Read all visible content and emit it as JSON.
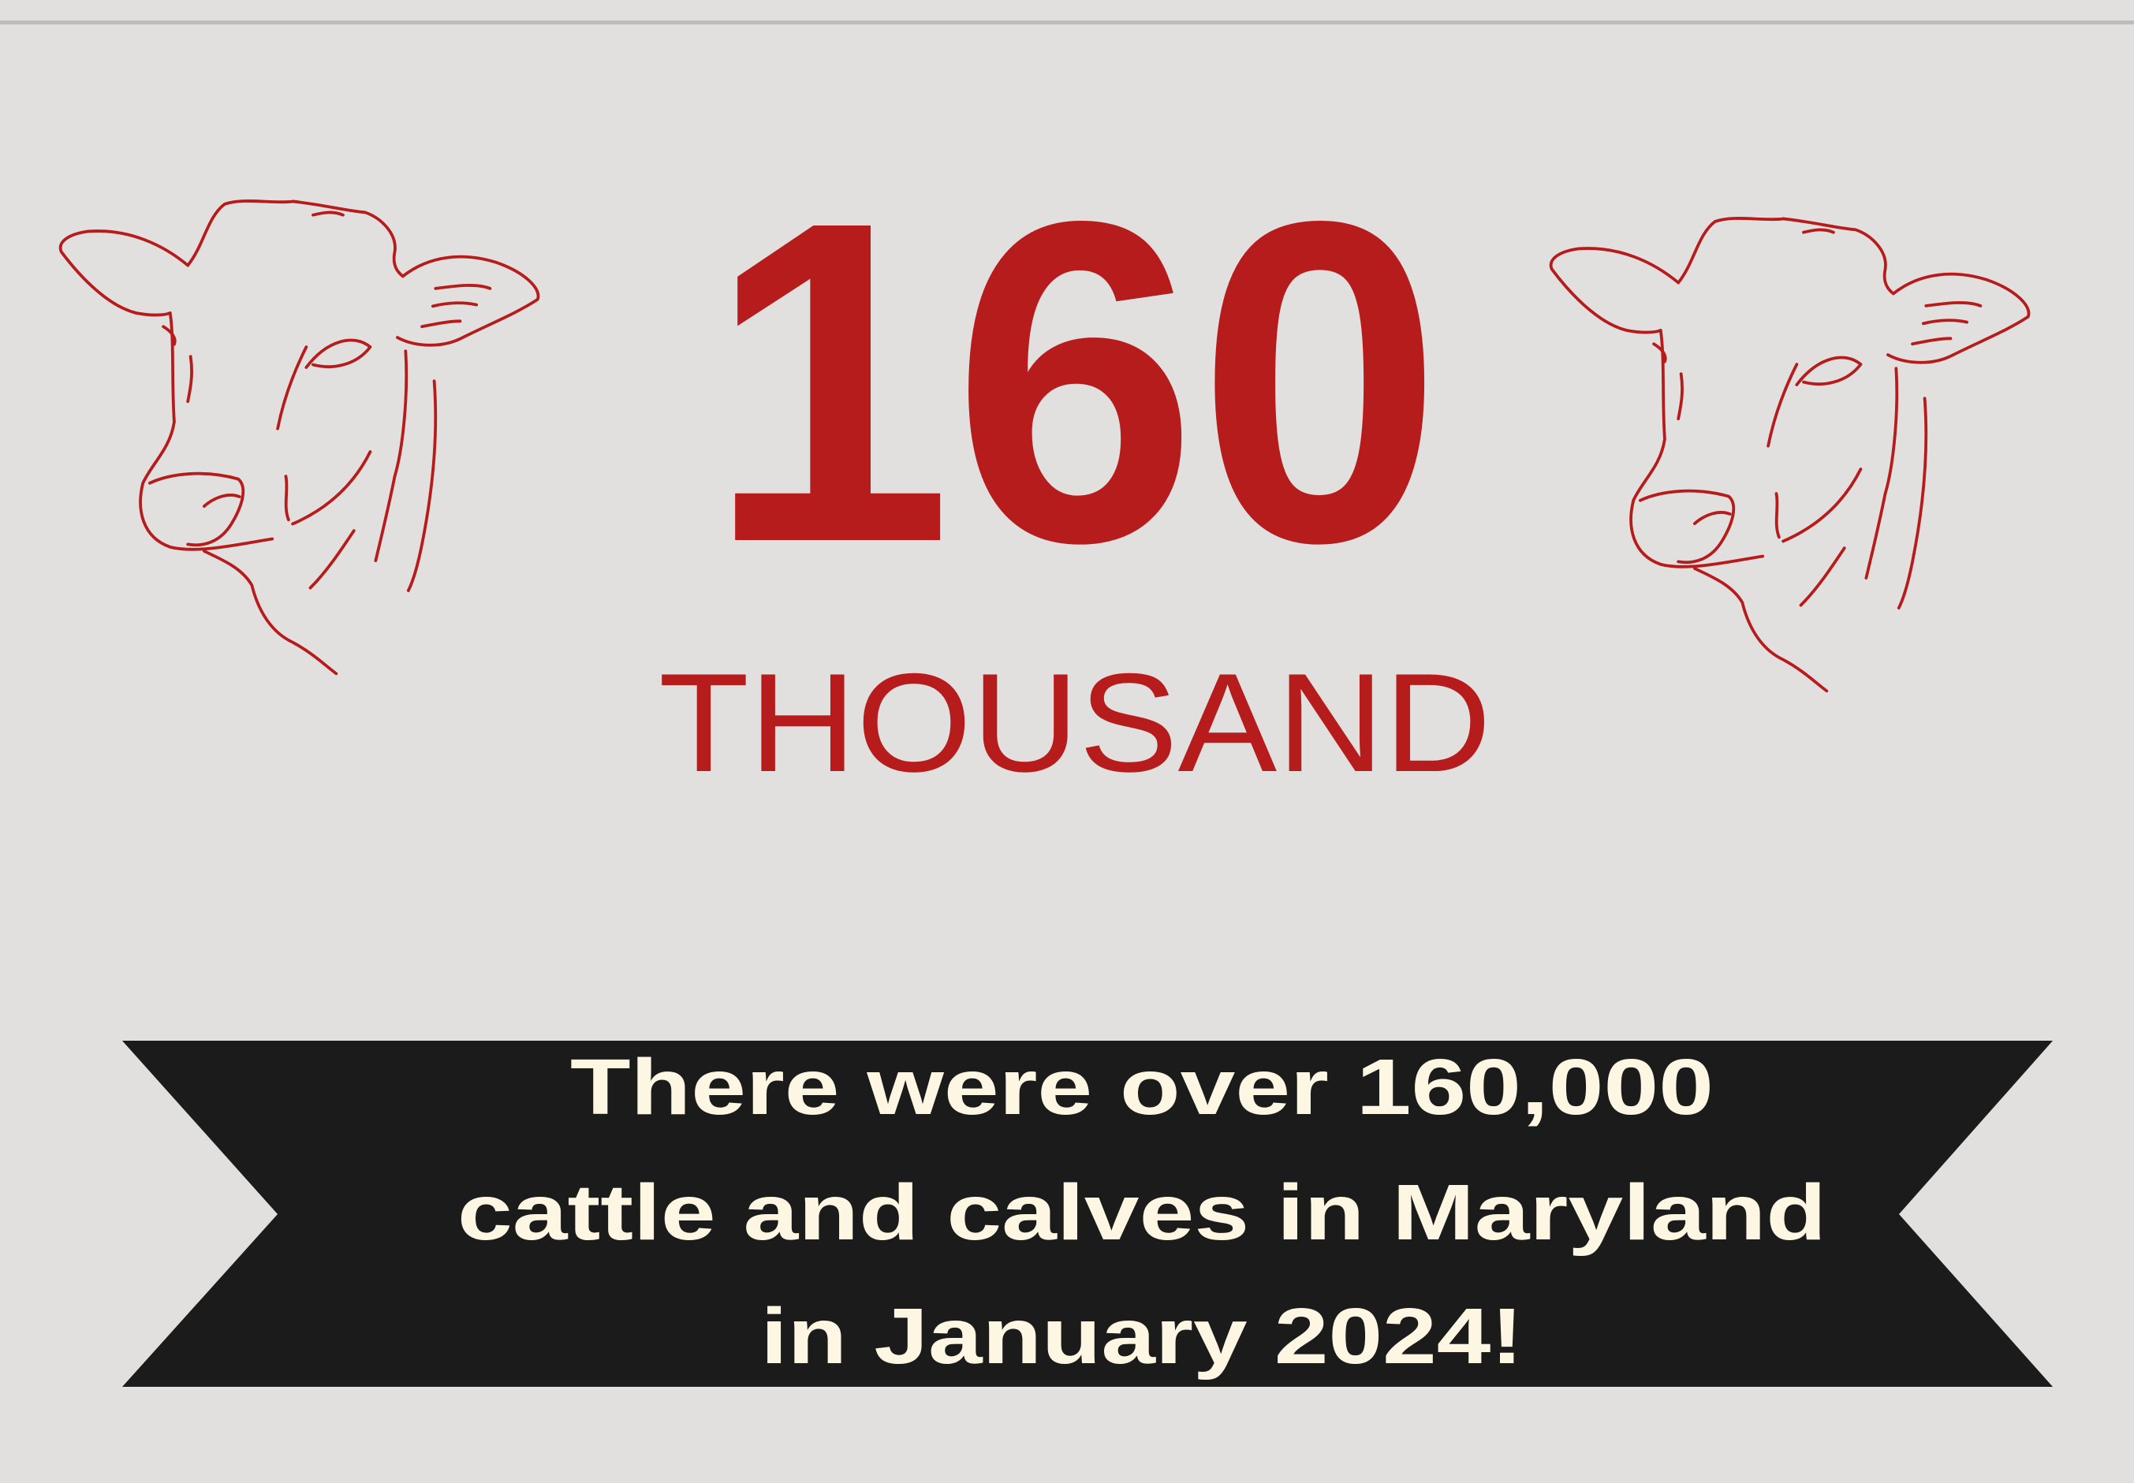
{
  "headline": {
    "number": "160",
    "unit": "THOUSAND"
  },
  "banner": {
    "lines": [
      "There were over 160,000",
      "cattle and calves in Maryland",
      "in January 2024!"
    ]
  }
}
